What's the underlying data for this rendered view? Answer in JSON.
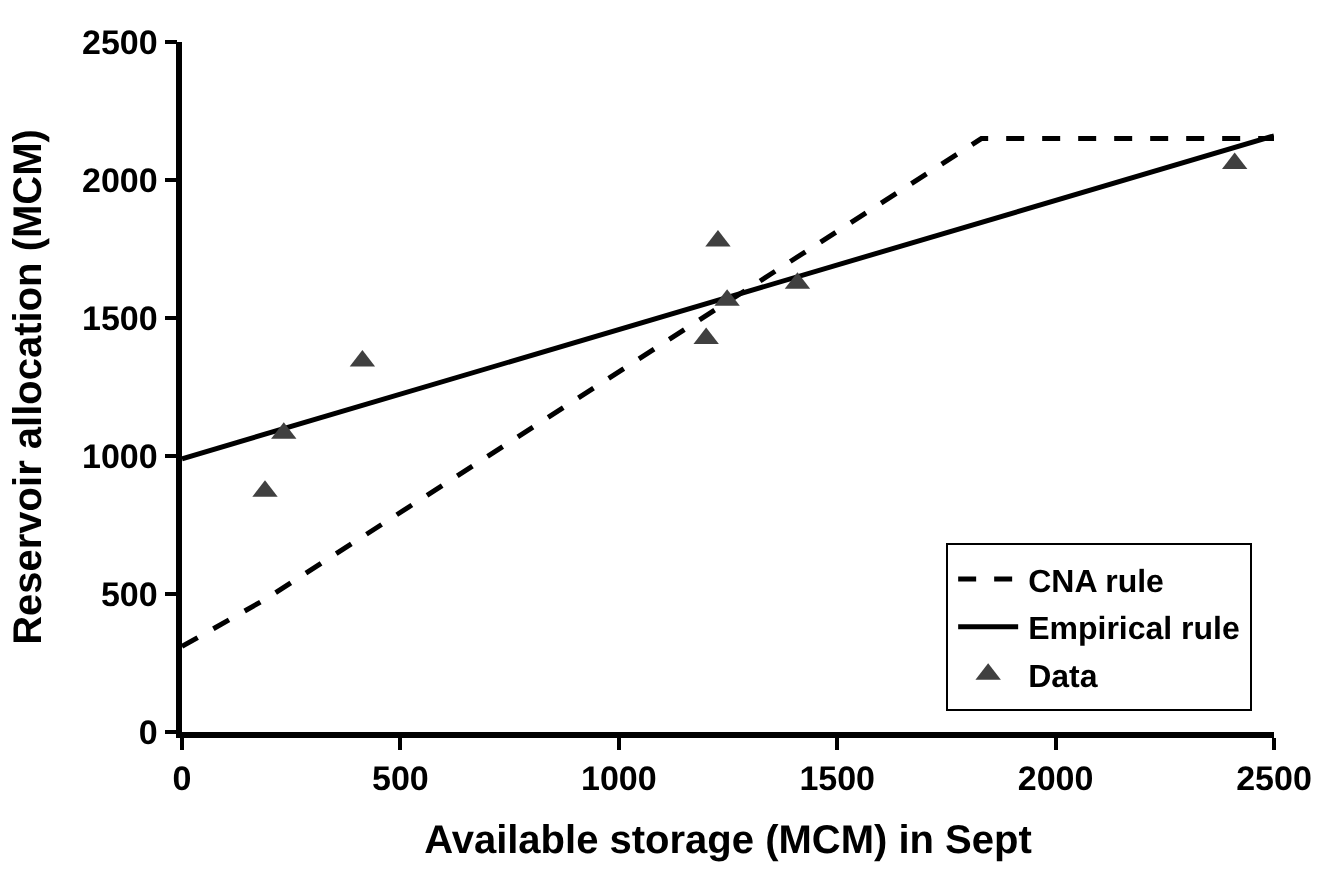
{
  "chart_data": {
    "type": "line",
    "xlabel": "Available storage (MCM) in Sept",
    "ylabel": "Reservoir allocation (MCM)",
    "xlim": [
      0,
      2500
    ],
    "xticks": [
      0,
      500,
      1000,
      1500,
      2000,
      2500
    ],
    "ylim": [
      0,
      2500
    ],
    "yticks": [
      0,
      500,
      1000,
      1500,
      2000,
      2500
    ],
    "legend": "bottom right",
    "series": [
      {
        "name": "CNA rule",
        "line_style": "dashed",
        "color": "#000000",
        "x": [
          0,
          190,
          1830,
          2500
        ],
        "values": [
          310,
          480,
          2150,
          2150
        ]
      },
      {
        "name": "Empirical rule",
        "line_style": "solid",
        "color": "#000000",
        "x": [
          0,
          2500
        ],
        "values": [
          990,
          2160
        ]
      },
      {
        "name": "Data",
        "type": "scatter",
        "marker": "triangle",
        "color": "#404040",
        "x": [
          190,
          233,
          413,
          1200,
          1227,
          1248,
          1409,
          2410
        ],
        "values": [
          872,
          1082,
          1344,
          1426,
          1779,
          1564,
          1626,
          2060
        ]
      }
    ]
  }
}
